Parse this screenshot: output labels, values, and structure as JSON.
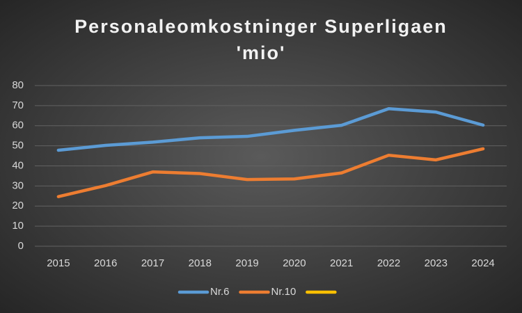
{
  "chart_data": {
    "type": "line",
    "title": [
      "Personaleomkostninger Superligaen",
      "'mio'"
    ],
    "categories": [
      "2015",
      "2016",
      "2017",
      "2018",
      "2019",
      "2020",
      "2021",
      "2022",
      "2023",
      "2024"
    ],
    "series": [
      {
        "name": "Nr.6",
        "color": "#5b9bd5",
        "values": [
          47.8,
          50.2,
          51.8,
          54,
          54.7,
          57.7,
          60.2,
          68.5,
          66.8,
          60.3
        ]
      },
      {
        "name": "Nr.10",
        "color": "#ed7d31",
        "values": [
          24.7,
          30.2,
          37,
          36.2,
          33.2,
          33.5,
          36.5,
          45.3,
          43,
          48.5
        ]
      },
      {
        "color": "#ffc000",
        "values": [
          null,
          null,
          null,
          null,
          null,
          null,
          null,
          null,
          null,
          null
        ]
      }
    ],
    "ylim": [
      0,
      80
    ],
    "yticks": [
      0,
      10,
      20,
      30,
      40,
      50,
      60,
      70,
      80
    ],
    "grid": true,
    "legend": "bottom"
  }
}
